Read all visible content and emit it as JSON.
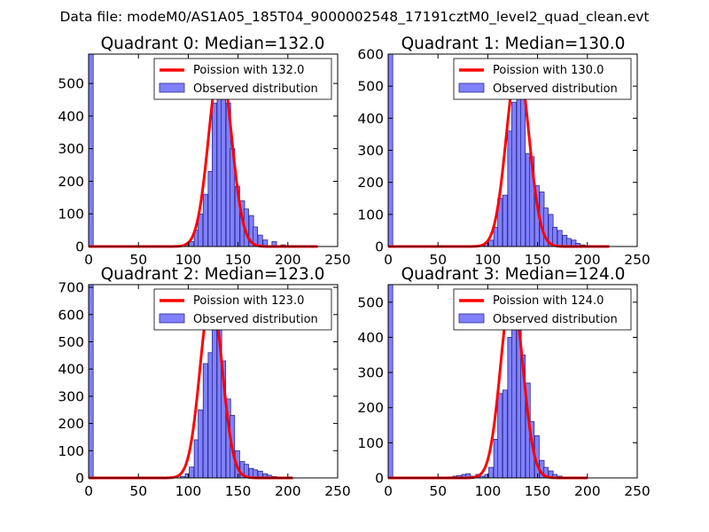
{
  "figure": {
    "suptitle": "Data file: modeM0/AS1A05_185T04_9000002548_17191cztM0_level2_quad_clean.evt"
  },
  "colors": {
    "bar_fill": "#8080ff",
    "bar_edge": "#2a2a8a",
    "poisson_line": "#ff0000",
    "frame": "#000000"
  },
  "chart_data": [
    {
      "type": "bar",
      "title": "Quadrant 0: Median=132.0",
      "xlim": [
        0,
        250
      ],
      "ylim": [
        0,
        590
      ],
      "xticks": [
        0,
        50,
        100,
        150,
        200,
        250
      ],
      "yticks": [
        0,
        100,
        200,
        300,
        400,
        500
      ],
      "legend": {
        "position": "top-right",
        "line_label": "Poission with 132.0",
        "bar_label": "Observed distribution"
      },
      "bin_width": 4.6,
      "bins": [
        [
          0,
          590
        ],
        [
          69,
          3
        ],
        [
          78,
          2
        ],
        [
          87,
          3
        ],
        [
          96,
          8
        ],
        [
          101,
          15
        ],
        [
          106,
          50
        ],
        [
          110,
          100
        ],
        [
          115,
          160
        ],
        [
          120,
          230
        ],
        [
          124,
          440
        ],
        [
          129,
          510
        ],
        [
          133,
          490
        ],
        [
          138,
          440
        ],
        [
          142,
          300
        ],
        [
          147,
          185
        ],
        [
          152,
          140
        ],
        [
          156,
          115
        ],
        [
          161,
          95
        ],
        [
          165,
          60
        ],
        [
          170,
          35
        ],
        [
          175,
          20
        ],
        [
          184,
          15
        ],
        [
          193,
          5
        ]
      ],
      "poisson": {
        "mean": 132.0,
        "peak": 560,
        "x_range": [
          0,
          230
        ]
      }
    },
    {
      "type": "bar",
      "title": "Quadrant 1: Median=130.0",
      "xlim": [
        0,
        250
      ],
      "ylim": [
        0,
        600
      ],
      "xticks": [
        0,
        50,
        100,
        150,
        200,
        250
      ],
      "yticks": [
        0,
        100,
        200,
        300,
        400,
        500,
        600
      ],
      "legend": {
        "position": "top-right",
        "line_label": "Poission with 130.0",
        "bar_label": "Observed distribution"
      },
      "bin_width": 4.6,
      "bins": [
        [
          0,
          600
        ],
        [
          65,
          3
        ],
        [
          74,
          2
        ],
        [
          83,
          3
        ],
        [
          92,
          5
        ],
        [
          97,
          10
        ],
        [
          101,
          20
        ],
        [
          106,
          60
        ],
        [
          110,
          150
        ],
        [
          115,
          160
        ],
        [
          120,
          360
        ],
        [
          124,
          450
        ],
        [
          129,
          550
        ],
        [
          133,
          480
        ],
        [
          138,
          290
        ],
        [
          142,
          280
        ],
        [
          147,
          190
        ],
        [
          152,
          170
        ],
        [
          156,
          120
        ],
        [
          161,
          100
        ],
        [
          165,
          60
        ],
        [
          170,
          50
        ],
        [
          175,
          35
        ],
        [
          179,
          25
        ],
        [
          184,
          20
        ],
        [
          188,
          10
        ],
        [
          193,
          5
        ]
      ],
      "poisson": {
        "mean": 130.0,
        "peak": 570,
        "x_range": [
          0,
          222
        ]
      }
    },
    {
      "type": "bar",
      "title": "Quadrant 2: Median=123.0",
      "xlim": [
        0,
        250
      ],
      "ylim": [
        0,
        710
      ],
      "xticks": [
        0,
        50,
        100,
        150,
        200,
        250
      ],
      "yticks": [
        0,
        100,
        200,
        300,
        400,
        500,
        600,
        700
      ],
      "legend": {
        "position": "top-right",
        "line_label": "Poission with 123.0",
        "bar_label": "Observed distribution"
      },
      "bin_width": 4.6,
      "bins": [
        [
          0,
          710
        ],
        [
          69,
          3
        ],
        [
          83,
          3
        ],
        [
          92,
          5
        ],
        [
          97,
          15
        ],
        [
          101,
          40
        ],
        [
          106,
          140
        ],
        [
          110,
          250
        ],
        [
          115,
          420
        ],
        [
          120,
          460
        ],
        [
          124,
          590
        ],
        [
          129,
          560
        ],
        [
          133,
          430
        ],
        [
          138,
          290
        ],
        [
          142,
          230
        ],
        [
          147,
          100
        ],
        [
          152,
          60
        ],
        [
          156,
          50
        ],
        [
          161,
          35
        ],
        [
          165,
          30
        ],
        [
          170,
          25
        ],
        [
          175,
          15
        ],
        [
          179,
          10
        ],
        [
          184,
          5
        ]
      ],
      "poisson": {
        "mean": 123.0,
        "peak": 670,
        "x_range": [
          0,
          205
        ]
      }
    },
    {
      "type": "bar",
      "title": "Quadrant 3: Median=124.0",
      "xlim": [
        0,
        250
      ],
      "ylim": [
        0,
        550
      ],
      "xticks": [
        0,
        50,
        100,
        150,
        200,
        250
      ],
      "yticks": [
        0,
        100,
        200,
        300,
        400,
        500
      ],
      "legend": {
        "position": "top-right",
        "line_label": "Poission with 124.0",
        "bar_label": "Observed distribution"
      },
      "bin_width": 4.6,
      "bins": [
        [
          0,
          550
        ],
        [
          60,
          3
        ],
        [
          65,
          5
        ],
        [
          69,
          7
        ],
        [
          74,
          10
        ],
        [
          78,
          12
        ],
        [
          83,
          5
        ],
        [
          88,
          10
        ],
        [
          92,
          5
        ],
        [
          97,
          10
        ],
        [
          101,
          30
        ],
        [
          106,
          110
        ],
        [
          110,
          240
        ],
        [
          115,
          250
        ],
        [
          120,
          400
        ],
        [
          124,
          520
        ],
        [
          129,
          480
        ],
        [
          133,
          350
        ],
        [
          138,
          270
        ],
        [
          142,
          160
        ],
        [
          147,
          120
        ],
        [
          152,
          50
        ],
        [
          156,
          30
        ],
        [
          161,
          20
        ],
        [
          165,
          10
        ],
        [
          170,
          5
        ]
      ],
      "poisson": {
        "mean": 124.0,
        "peak": 530,
        "x_range": [
          0,
          200
        ]
      }
    }
  ]
}
